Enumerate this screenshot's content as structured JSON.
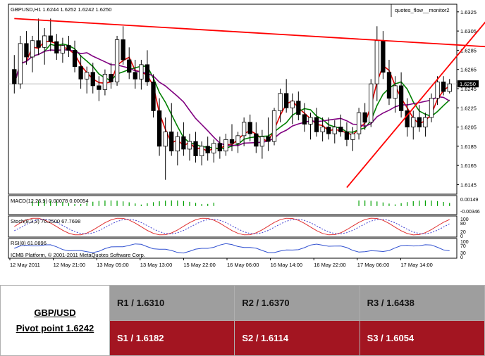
{
  "chart_data": {
    "type": "candlestick",
    "main": {
      "title": "GBPUSD,H1",
      "ohlc_label": "1.6244 1.6252 1.6242 1.6250",
      "indicator_label": "quotes_flow__monitor2",
      "last_price": "1.6250",
      "ylim": [
        1.6138,
        1.633
      ],
      "y_ticks": [
        "1.6325",
        "1.6305",
        "1.6285",
        "1.6265",
        "1.6245",
        "1.6225",
        "1.6205",
        "1.6185",
        "1.6165",
        "1.6145"
      ],
      "candles": [
        [
          1.6265,
          1.628,
          1.624,
          1.625
        ],
        [
          1.625,
          1.63,
          1.6245,
          1.6292
        ],
        [
          1.6292,
          1.6305,
          1.627,
          1.6278
        ],
        [
          1.6278,
          1.63,
          1.6262,
          1.6295
        ],
        [
          1.6295,
          1.6318,
          1.628,
          1.6288
        ],
        [
          1.6288,
          1.6308,
          1.627,
          1.63
        ],
        [
          1.63,
          1.6318,
          1.6284,
          1.6294
        ],
        [
          1.6294,
          1.6302,
          1.6275,
          1.6282
        ],
        [
          1.6282,
          1.6298,
          1.6272,
          1.629
        ],
        [
          1.629,
          1.63,
          1.6278,
          1.6285
        ],
        [
          1.6285,
          1.6295,
          1.6262,
          1.6268
        ],
        [
          1.6268,
          1.628,
          1.6245,
          1.6255
        ],
        [
          1.6255,
          1.6268,
          1.624,
          1.6262
        ],
        [
          1.6262,
          1.6272,
          1.624,
          1.6248
        ],
        [
          1.6248,
          1.6258,
          1.6232,
          1.6244
        ],
        [
          1.6244,
          1.6265,
          1.6238,
          1.626
        ],
        [
          1.626,
          1.6272,
          1.6245,
          1.6252
        ],
        [
          1.6252,
          1.63,
          1.6248,
          1.6296
        ],
        [
          1.6296,
          1.631,
          1.627,
          1.6275
        ],
        [
          1.6275,
          1.6288,
          1.6255,
          1.6262
        ],
        [
          1.6262,
          1.6275,
          1.6245,
          1.6255
        ],
        [
          1.6255,
          1.6275,
          1.6244,
          1.627
        ],
        [
          1.627,
          1.6285,
          1.6248,
          1.6252
        ],
        [
          1.6252,
          1.626,
          1.6215,
          1.6222
        ],
        [
          1.6222,
          1.6235,
          1.6175,
          1.6185
        ],
        [
          1.6185,
          1.6215,
          1.615,
          1.62
        ],
        [
          1.62,
          1.623,
          1.6175,
          1.618
        ],
        [
          1.618,
          1.62,
          1.6165,
          1.6195
        ],
        [
          1.6195,
          1.621,
          1.6175,
          1.6182
        ],
        [
          1.6182,
          1.6198,
          1.617,
          1.619
        ],
        [
          1.619,
          1.62,
          1.6168,
          1.6175
        ],
        [
          1.6175,
          1.619,
          1.6165,
          1.6185
        ],
        [
          1.6185,
          1.6195,
          1.617,
          1.6178
        ],
        [
          1.6178,
          1.6192,
          1.6168,
          1.6188
        ],
        [
          1.6188,
          1.6195,
          1.6172,
          1.618
        ],
        [
          1.618,
          1.6198,
          1.6175,
          1.6192
        ],
        [
          1.6192,
          1.6208,
          1.618,
          1.6188
        ],
        [
          1.6188,
          1.62,
          1.6178,
          1.6196
        ],
        [
          1.6196,
          1.6215,
          1.6185,
          1.621
        ],
        [
          1.621,
          1.6218,
          1.619,
          1.6198
        ],
        [
          1.6198,
          1.621,
          1.6178,
          1.6185
        ],
        [
          1.6185,
          1.6202,
          1.6172,
          1.6195
        ],
        [
          1.6195,
          1.6215,
          1.618,
          1.619
        ],
        [
          1.619,
          1.6225,
          1.6186,
          1.6222
        ],
        [
          1.6222,
          1.6245,
          1.621,
          1.624
        ],
        [
          1.624,
          1.6255,
          1.622,
          1.6225
        ],
        [
          1.6225,
          1.624,
          1.6208,
          1.6232
        ],
        [
          1.6232,
          1.6242,
          1.6212,
          1.6218
        ],
        [
          1.6218,
          1.623,
          1.62,
          1.6208
        ],
        [
          1.6208,
          1.622,
          1.6192,
          1.6215
        ],
        [
          1.6215,
          1.6225,
          1.6195,
          1.62
        ],
        [
          1.62,
          1.6215,
          1.619,
          1.6205
        ],
        [
          1.6205,
          1.6215,
          1.6192,
          1.6198
        ],
        [
          1.6198,
          1.6212,
          1.6188,
          1.6205
        ],
        [
          1.6205,
          1.6218,
          1.6195,
          1.62
        ],
        [
          1.62,
          1.621,
          1.6185,
          1.6192
        ],
        [
          1.6192,
          1.6205,
          1.618,
          1.6198
        ],
        [
          1.6198,
          1.6225,
          1.6192,
          1.622
        ],
        [
          1.622,
          1.623,
          1.6202,
          1.621
        ],
        [
          1.621,
          1.6255,
          1.6205,
          1.625
        ],
        [
          1.625,
          1.631,
          1.6232,
          1.6295
        ],
        [
          1.6295,
          1.6305,
          1.6255,
          1.6262
        ],
        [
          1.6262,
          1.6275,
          1.6228,
          1.6235
        ],
        [
          1.6235,
          1.6258,
          1.622,
          1.6248
        ],
        [
          1.6248,
          1.6262,
          1.6215,
          1.6222
        ],
        [
          1.6222,
          1.6235,
          1.6195,
          1.6205
        ],
        [
          1.6205,
          1.6222,
          1.6192,
          1.6215
        ],
        [
          1.6215,
          1.6228,
          1.62,
          1.6205
        ],
        [
          1.6205,
          1.622,
          1.6195,
          1.6215
        ],
        [
          1.6215,
          1.624,
          1.621,
          1.6235
        ],
        [
          1.6235,
          1.6258,
          1.6228,
          1.6252
        ],
        [
          1.6252,
          1.6258,
          1.6238,
          1.6242
        ],
        [
          1.6242,
          1.6255,
          1.624,
          1.625
        ]
      ],
      "ma_fast_color": "#e00000",
      "ma_mid_color": "#008000",
      "ma_slow_color": "#800080",
      "trendline_color": "#ff0000",
      "trendlines": [
        {
          "from": [
            0,
            1.6318
          ],
          "to": [
            80,
            1.6288
          ]
        },
        {
          "from": [
            55,
            1.6142
          ],
          "to": [
            80,
            1.633
          ]
        }
      ]
    },
    "macd": {
      "label": "MACD(12,26,9) 0.00078 0.00054",
      "y_ticks": [
        "0.00149",
        "-0.00346"
      ],
      "color": "#00a000"
    },
    "stoch": {
      "label": "Stoch(8,3,3) 76.2500 67.7698",
      "y_ticks": [
        "100",
        "80",
        "20",
        "0"
      ]
    },
    "rsi": {
      "label": "RSI(8) 61.0896",
      "y_ticks": [
        "100",
        "70",
        "30",
        "0"
      ]
    },
    "copyright": "ICMB Platform, © 2001-2011 MetaQuotes Software Corp.",
    "x_ticks": [
      "12 May 2011",
      "12 May 21:00",
      "13 May 05:00",
      "13 May 13:00",
      "15 May 22:00",
      "16 May 06:00",
      "16 May 14:00",
      "16 May 22:00",
      "17 May 06:00",
      "17 May 14:00"
    ]
  },
  "pivot": {
    "pair": "GBP/USD",
    "pivot_point": "Pivot point 1.6242",
    "r1": "R1 / 1.6310",
    "r2": "R2 / 1.6370",
    "r3": "R3 / 1.6438",
    "s1": "S1 / 1.6182",
    "s2": "S2 / 1.6114",
    "s3": "S3 / 1.6054"
  }
}
